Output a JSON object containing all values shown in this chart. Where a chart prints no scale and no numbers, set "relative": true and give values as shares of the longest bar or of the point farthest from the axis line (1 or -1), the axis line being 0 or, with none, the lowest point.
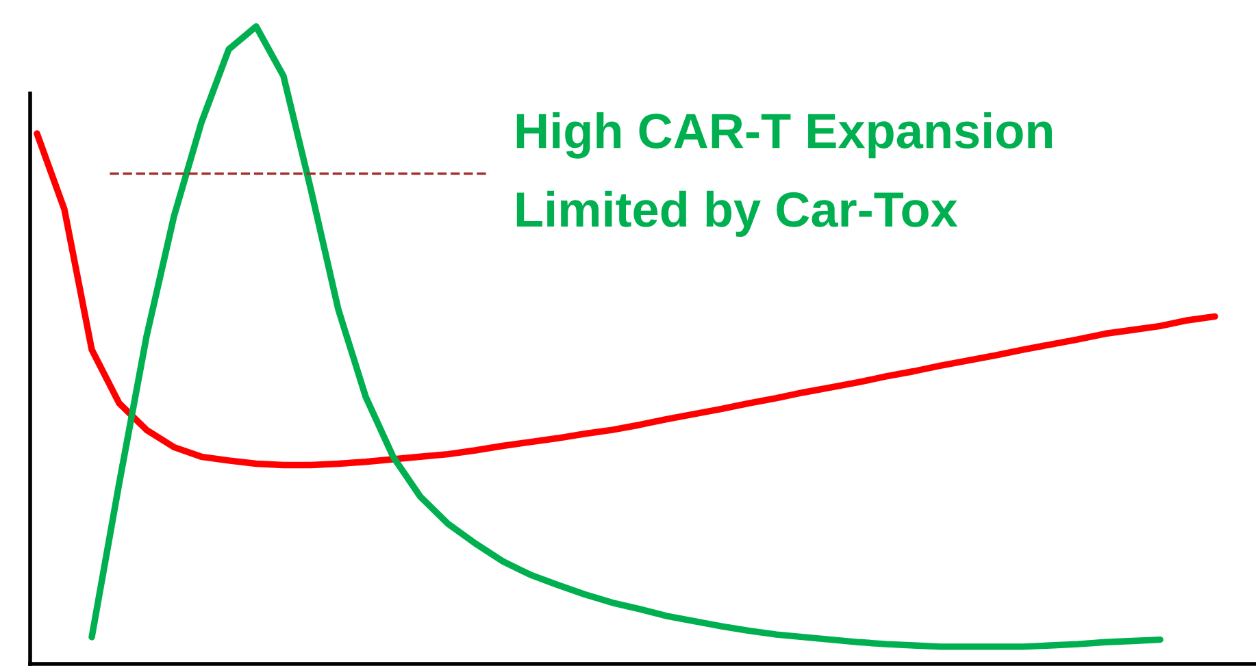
{
  "chart_data": {
    "type": "line",
    "relative": true,
    "categories": [
      null,
      null,
      null,
      null,
      null,
      null,
      null,
      null,
      null,
      null,
      null,
      null,
      null,
      null,
      null,
      null,
      null,
      null,
      null,
      null,
      null,
      null,
      null,
      null,
      null,
      null,
      null,
      null,
      null,
      null,
      null,
      null,
      null,
      null,
      null,
      null,
      null,
      null,
      null,
      null,
      null,
      null,
      null,
      null
    ],
    "series": [
      {
        "color": "#ff0000",
        "values": [
          0.832,
          0.713,
          0.493,
          0.409,
          0.367,
          0.34,
          0.325,
          0.319,
          0.314,
          0.312,
          0.312,
          0.314,
          0.317,
          0.321,
          0.325,
          0.329,
          0.335,
          0.342,
          0.348,
          0.354,
          0.361,
          0.367,
          0.375,
          0.384,
          0.392,
          0.4,
          0.409,
          0.417,
          0.426,
          0.434,
          0.442,
          0.451,
          0.459,
          0.468,
          0.476,
          0.484,
          0.493,
          0.501,
          0.509,
          0.518,
          0.524,
          0.53,
          0.539,
          0.545
        ]
      },
      {
        "color": "#00b050",
        "values": [
          null,
          null,
          0.042,
          0.283,
          0.514,
          0.702,
          0.849,
          0.964,
          1.0,
          0.922,
          0.744,
          0.556,
          0.419,
          0.325,
          0.262,
          0.22,
          0.189,
          0.161,
          0.14,
          0.124,
          0.109,
          0.096,
          0.086,
          0.075,
          0.067,
          0.059,
          0.052,
          0.046,
          0.042,
          0.038,
          0.034,
          0.031,
          0.029,
          0.027,
          0.027,
          0.027,
          0.027,
          0.029,
          0.031,
          0.034,
          0.036,
          0.038,
          null,
          null
        ]
      }
    ],
    "ref_lines": [
      {
        "axis": "y",
        "value": 0.769,
        "color": "#a0302a",
        "line_style": "dashed"
      }
    ],
    "annotations": [
      "High CAR-T Expansion\nLimited by Car-Tox"
    ],
    "legend": false,
    "marker": "none"
  }
}
